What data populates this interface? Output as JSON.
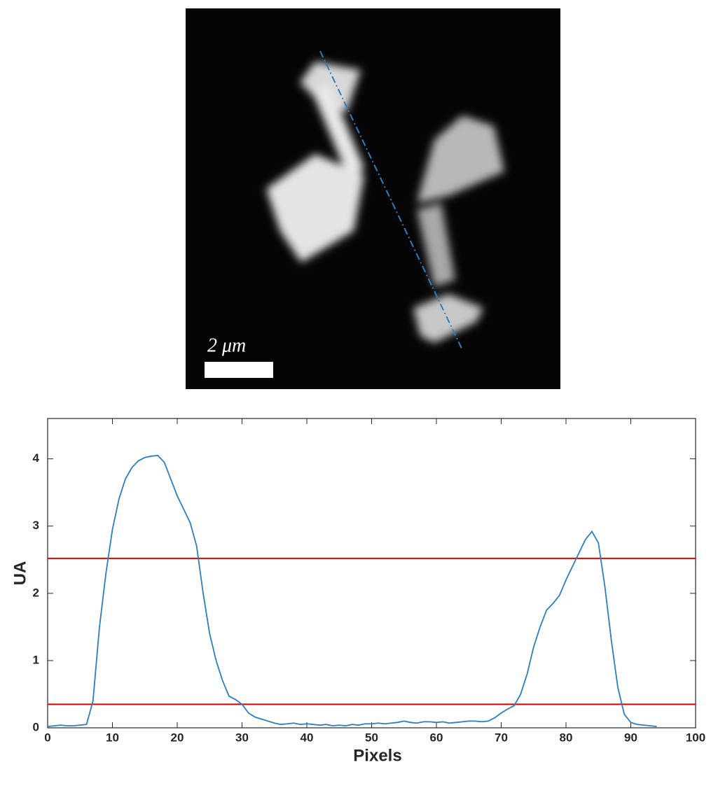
{
  "image": {
    "scale_bar": "2 μm"
  },
  "chart_data": {
    "type": "line",
    "xlabel": "Pixels",
    "ylabel": "UA",
    "x": [
      0,
      1,
      2,
      3,
      4,
      5,
      6,
      7,
      8,
      9,
      10,
      11,
      12,
      13,
      14,
      15,
      16,
      17,
      18,
      19,
      20,
      21,
      22,
      23,
      24,
      25,
      26,
      27,
      28,
      29,
      30,
      31,
      32,
      33,
      34,
      35,
      36,
      37,
      38,
      39,
      40,
      41,
      42,
      43,
      44,
      45,
      46,
      47,
      48,
      49,
      50,
      51,
      52,
      53,
      54,
      55,
      56,
      57,
      58,
      59,
      60,
      61,
      62,
      63,
      64,
      65,
      66,
      67,
      68,
      69,
      70,
      71,
      72,
      73,
      74,
      75,
      76,
      77,
      78,
      79,
      80,
      81,
      82,
      83,
      84,
      85,
      86,
      87,
      88,
      89,
      90,
      91,
      92,
      93,
      94
    ],
    "series": [
      {
        "color": "#2a7fc0",
        "values": [
          0.02,
          0.03,
          0.04,
          0.03,
          0.03,
          0.04,
          0.05,
          0.4,
          1.5,
          2.3,
          2.95,
          3.4,
          3.7,
          3.87,
          3.97,
          4.02,
          4.04,
          4.05,
          3.95,
          3.7,
          3.45,
          3.25,
          3.05,
          2.7,
          2.0,
          1.4,
          1.0,
          0.7,
          0.47,
          0.42,
          0.35,
          0.22,
          0.16,
          0.13,
          0.1,
          0.07,
          0.05,
          0.06,
          0.07,
          0.05,
          0.06,
          0.05,
          0.04,
          0.05,
          0.03,
          0.04,
          0.03,
          0.05,
          0.04,
          0.06,
          0.06,
          0.07,
          0.06,
          0.07,
          0.08,
          0.1,
          0.08,
          0.07,
          0.09,
          0.09,
          0.08,
          0.09,
          0.07,
          0.08,
          0.09,
          0.1,
          0.1,
          0.09,
          0.1,
          0.15,
          0.22,
          0.28,
          0.33,
          0.5,
          0.8,
          1.2,
          1.5,
          1.75,
          1.85,
          1.97,
          2.2,
          2.4,
          2.6,
          2.8,
          2.92,
          2.75,
          2.1,
          1.3,
          0.6,
          0.2,
          0.08,
          0.05,
          0.04,
          0.03,
          0.02
        ]
      }
    ],
    "hlines": [
      {
        "value": 2.52,
        "color": "#e00000"
      },
      {
        "value": 0.35,
        "color": "#e00000"
      }
    ],
    "xlim": [
      0,
      100
    ],
    "xticks": [
      0,
      10,
      20,
      30,
      40,
      50,
      60,
      70,
      80,
      90,
      100
    ],
    "ylim": [
      0,
      4.6
    ],
    "yticks": [
      0,
      1,
      2,
      3,
      4
    ]
  }
}
